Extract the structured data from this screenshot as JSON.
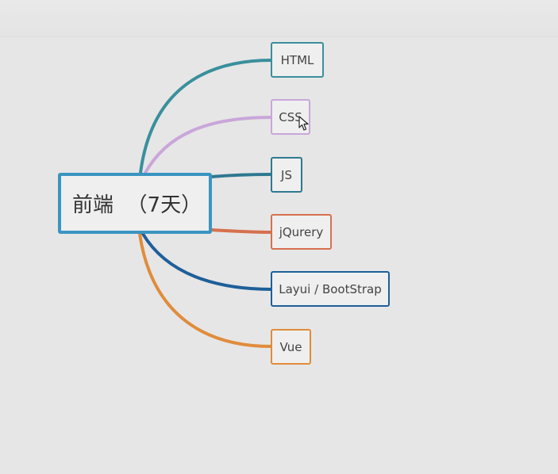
{
  "root": {
    "label": "前端  （7天）",
    "color": "#3a95c1"
  },
  "branches": [
    {
      "label": "HTML",
      "color": "#3a8f9c",
      "name": "node-html"
    },
    {
      "label": "CSS",
      "color": "#c9a6da",
      "name": "node-css"
    },
    {
      "label": "JS",
      "color": "#2e7890",
      "name": "node-js"
    },
    {
      "label": "jQurery",
      "color": "#d6704f",
      "name": "node-jquery"
    },
    {
      "label": "Layui / BootStrap",
      "color": "#1e5f99",
      "name": "node-layui-bootstrap"
    },
    {
      "label": "Vue",
      "color": "#e08c3b",
      "name": "node-vue"
    }
  ],
  "cursor_icon": "mouse-pointer-icon"
}
